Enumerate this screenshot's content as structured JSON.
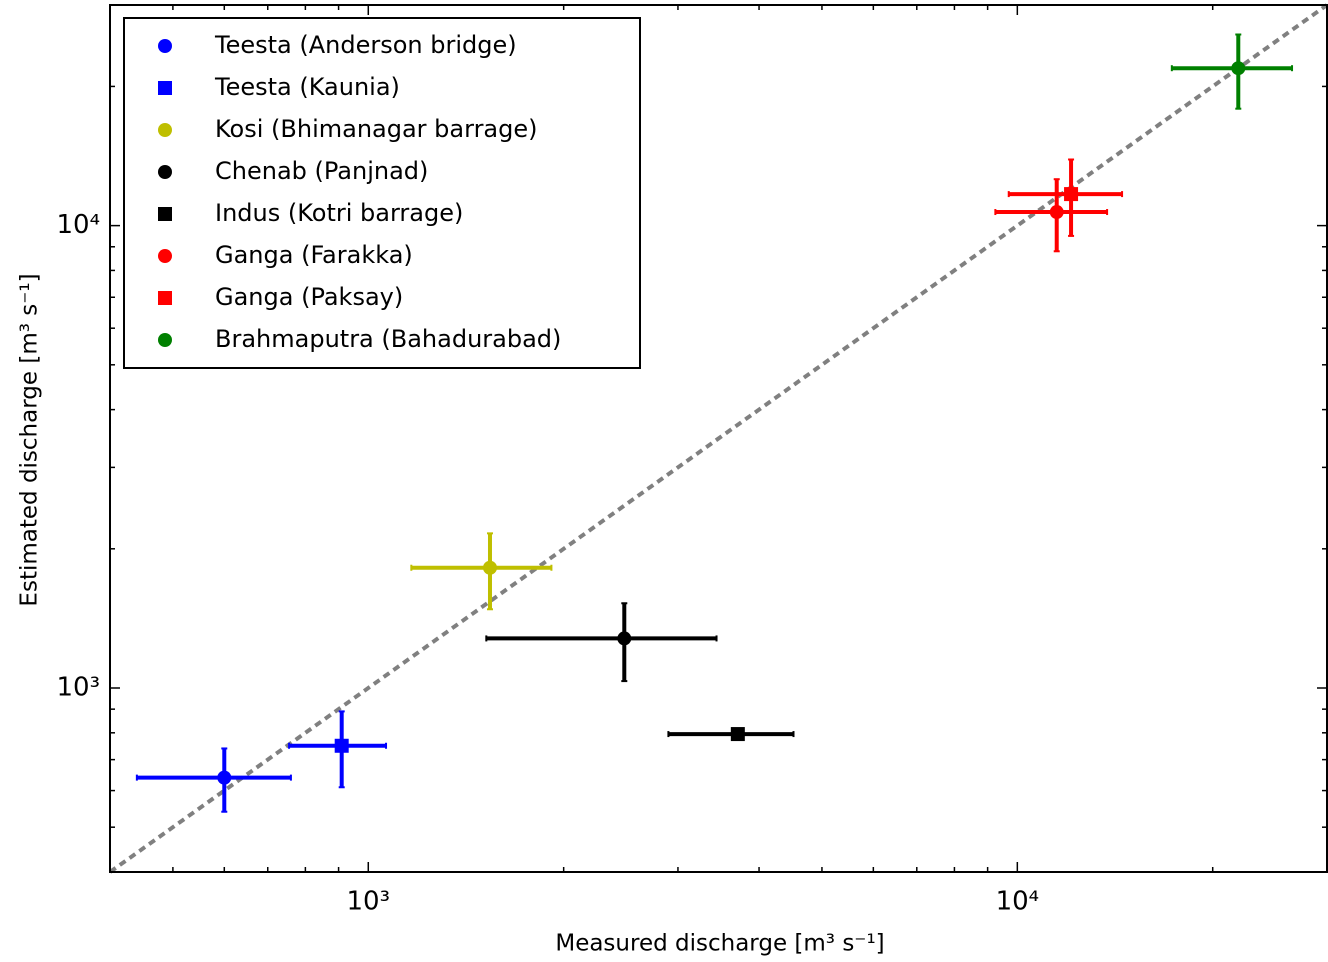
{
  "chart_data": {
    "type": "scatter",
    "x_label": "Measured discharge [m³ s⁻¹]",
    "y_label": "Estimated discharge [m³ s⁻¹]",
    "x_scale": "log",
    "y_scale": "log",
    "xlim": [
      400,
      30000
    ],
    "ylim": [
      400,
      30000
    ],
    "xticks": [
      {
        "value": 1000,
        "label": "10³"
      },
      {
        "value": 10000,
        "label": "10⁴"
      }
    ],
    "yticks": [
      {
        "value": 1000,
        "label": "10³"
      },
      {
        "value": 10000,
        "label": "10⁴"
      }
    ],
    "xminorticks": [
      400,
      500,
      600,
      700,
      800,
      900,
      2000,
      3000,
      4000,
      5000,
      6000,
      7000,
      8000,
      9000,
      20000,
      30000
    ],
    "yminorticks": [
      400,
      500,
      600,
      700,
      800,
      900,
      2000,
      3000,
      4000,
      5000,
      6000,
      7000,
      8000,
      9000,
      20000,
      30000
    ],
    "identity_line": {
      "color": "#808080",
      "style": "dashed"
    },
    "legend": "upper left",
    "series": [
      {
        "name": "Teesta (Anderson bridge)",
        "color": "#0000ff",
        "marker": "circle",
        "x": [
          600
        ],
        "values": [
          640
        ],
        "xerr": [
          160
        ],
        "yerr": [
          100
        ]
      },
      {
        "name": "Teesta (Kaunia)",
        "color": "#0000ff",
        "marker": "square",
        "x": [
          910
        ],
        "values": [
          750
        ],
        "xerr": [
          155
        ],
        "yerr": [
          140
        ]
      },
      {
        "name": "Kosi (Bhimanagar barrage)",
        "color": "#bfbf00",
        "marker": "circle",
        "x": [
          1540
        ],
        "values": [
          1820
        ],
        "xerr": [
          375
        ],
        "yerr": [
          340
        ]
      },
      {
        "name": "Chenab (Panjnad)",
        "color": "#000000",
        "marker": "circle",
        "x": [
          2480
        ],
        "values": [
          1280
        ],
        "xerr": [
          960
        ],
        "yerr": [
          245
        ]
      },
      {
        "name": "Indus (Kotri barrage)",
        "color": "#000000",
        "marker": "square",
        "x": [
          3710
        ],
        "values": [
          795
        ],
        "xerr": [
          810
        ],
        "yerr": [
          0
        ]
      },
      {
        "name": "Ganga (Farakka)",
        "color": "#ff0000",
        "marker": "circle",
        "x": [
          11500
        ],
        "values": [
          10700
        ],
        "xerr": [
          2250
        ],
        "yerr": [
          1900
        ]
      },
      {
        "name": "Ganga (Paksay)",
        "color": "#ff0000",
        "marker": "square",
        "x": [
          12100
        ],
        "values": [
          11700
        ],
        "xerr": [
          2400
        ],
        "yerr": [
          2200
        ]
      },
      {
        "name": "Brahmaputra (Bahadurabad)",
        "color": "#008000",
        "marker": "circle",
        "x": [
          21900
        ],
        "values": [
          21900
        ],
        "xerr": [
          4600
        ],
        "yerr": [
          4000
        ]
      }
    ]
  }
}
